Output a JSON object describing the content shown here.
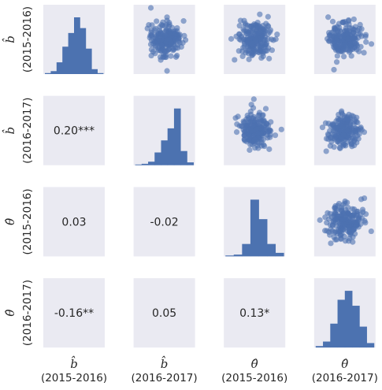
{
  "variables": [
    {
      "symbol": "b̂",
      "period": "(2015-2016)"
    },
    {
      "symbol": "b̂",
      "period": "(2016-2017)"
    },
    {
      "symbol": "θ̂",
      "period": "(2015-2016)"
    },
    {
      "symbol": "θ̂",
      "period": "(2016-2017)"
    }
  ],
  "chart_data": {
    "type": "pair-grid",
    "grid": false,
    "diagonal": {
      "type": "histogram",
      "series": [
        {
          "heights": [
            1,
            3,
            12,
            28,
            42,
            58,
            47,
            26,
            5,
            1
          ]
        },
        {
          "heights": [
            1,
            2,
            5,
            18,
            35,
            52,
            80,
            20,
            4
          ]
        },
        {
          "heights": [
            1,
            2,
            14,
            64,
            42,
            14,
            4
          ]
        },
        {
          "heights": [
            1,
            4,
            16,
            32,
            38,
            28,
            14,
            3
          ]
        }
      ]
    },
    "upper": {
      "type": "scatter",
      "point_count": 200
    },
    "lower": {
      "type": "correlation_text",
      "values": [
        {
          "row": 1,
          "col": 0,
          "label": "0.20***"
        },
        {
          "row": 2,
          "col": 0,
          "label": "0.03"
        },
        {
          "row": 2,
          "col": 1,
          "label": "-0.02"
        },
        {
          "row": 3,
          "col": 0,
          "label": "-0.16**"
        },
        {
          "row": 3,
          "col": 1,
          "label": "0.05"
        },
        {
          "row": 3,
          "col": 2,
          "label": "0.13*"
        }
      ]
    }
  },
  "colors": {
    "panel": "#eaeaf2",
    "bar": "#4c72b0",
    "point": "#4c72b0",
    "text": "#262626"
  }
}
